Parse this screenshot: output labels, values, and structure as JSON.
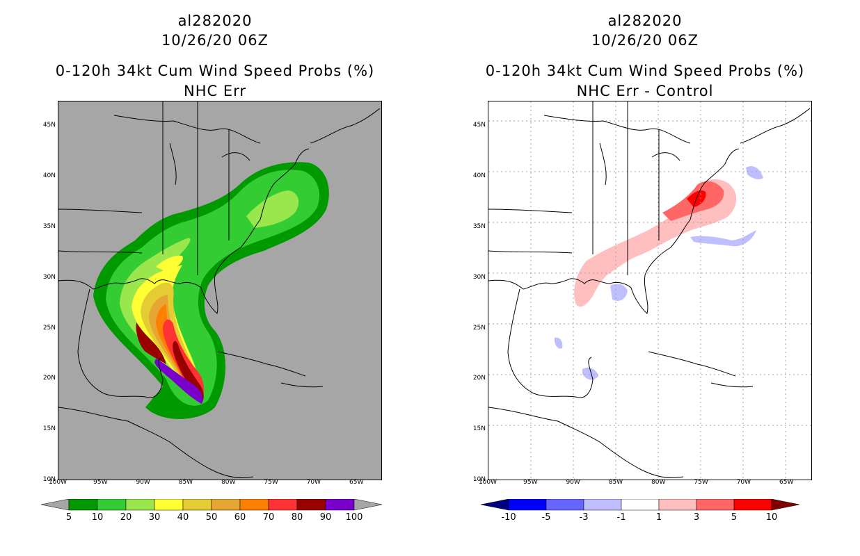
{
  "left": {
    "storm_id": "al282020",
    "datetime": "10/26/20 06Z",
    "title": "0-120h 34kt Cum Wind Speed Probs (%)",
    "subtitle": "NHC Err",
    "background_color": "#a6a6a6",
    "colorbar": {
      "colors": [
        "#009900",
        "#33cc33",
        "#99e64d",
        "#ffff33",
        "#e6cc33",
        "#e6a633",
        "#ff8000",
        "#ff3333",
        "#990000",
        "#7a00cc"
      ],
      "end_color": "#a6a6a6",
      "labels": [
        "5",
        "10",
        "20",
        "30",
        "40",
        "50",
        "60",
        "70",
        "80",
        "90",
        "100"
      ]
    }
  },
  "right": {
    "storm_id": "al282020",
    "datetime": "10/26/20 06Z",
    "title": "0-120h 34kt Cum Wind Speed Probs (%)",
    "subtitle": "NHC Err - Control",
    "background_color": "#ffffff",
    "colorbar": {
      "colors": [
        "#000080",
        "#0000ff",
        "#6666ff",
        "#bfbfff",
        "#ffffff",
        "#ffbfbf",
        "#ff6666",
        "#ff0000",
        "#800000"
      ],
      "labels": [
        "-10",
        "-5",
        "-3",
        "-1",
        "1",
        "3",
        "5",
        "10"
      ]
    }
  },
  "axes": {
    "lat_labels": [
      "45N",
      "40N",
      "35N",
      "30N",
      "25N",
      "20N",
      "15N",
      "10N"
    ],
    "lon_labels": [
      "100W",
      "95W",
      "90W",
      "85W",
      "80W",
      "75W",
      "70W",
      "65W"
    ],
    "lat_values": [
      45,
      40,
      35,
      30,
      25,
      20,
      15,
      10
    ],
    "lon_values": [
      -100,
      -95,
      -90,
      -85,
      -80,
      -75,
      -70,
      -65
    ],
    "lat_range": [
      10,
      47.5
    ],
    "lon_range": [
      -100,
      -62
    ]
  }
}
